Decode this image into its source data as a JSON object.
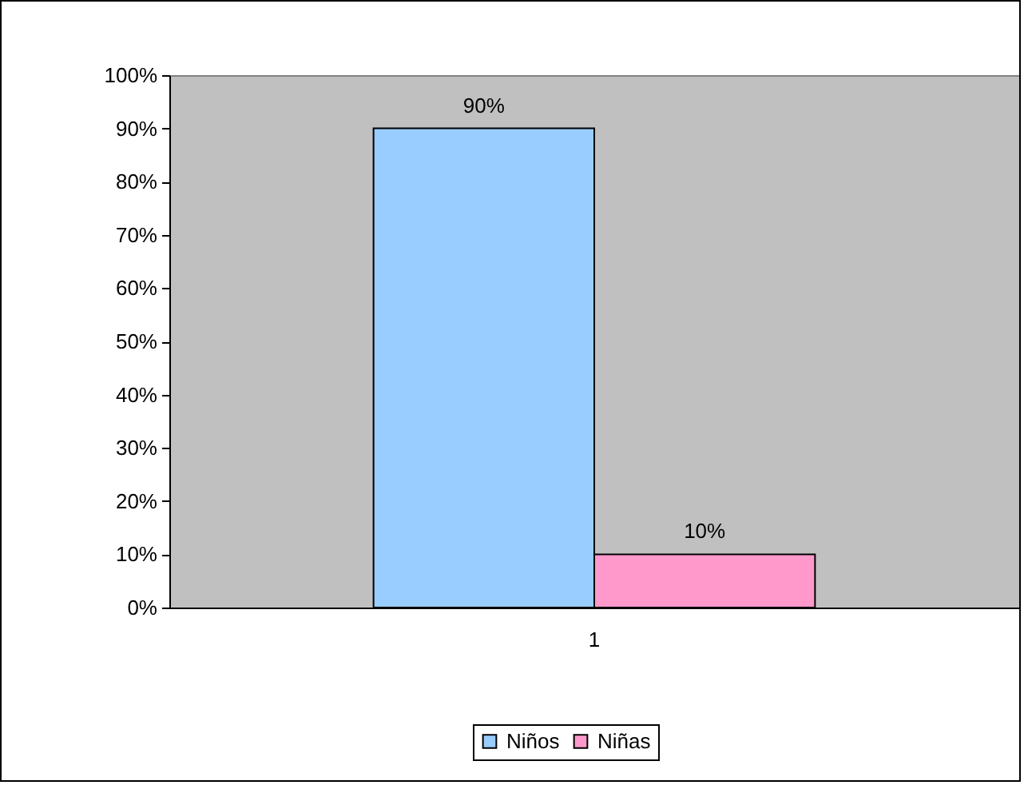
{
  "chart_data": {
    "type": "bar",
    "categories": [
      "1"
    ],
    "series": [
      {
        "name": "Niños",
        "color": "#99ccff",
        "values": [
          90
        ],
        "value_labels": [
          "90%"
        ]
      },
      {
        "name": "Niñas",
        "color": "#ff99cc",
        "values": [
          10
        ],
        "value_labels": [
          "10%"
        ]
      }
    ],
    "ylim": [
      0,
      100
    ],
    "yticks": [
      {
        "value": 0,
        "label": "0%"
      },
      {
        "value": 10,
        "label": "10%"
      },
      {
        "value": 20,
        "label": "20%"
      },
      {
        "value": 30,
        "label": "30%"
      },
      {
        "value": 40,
        "label": "40%"
      },
      {
        "value": 50,
        "label": "50%"
      },
      {
        "value": 60,
        "label": "60%"
      },
      {
        "value": 70,
        "label": "70%"
      },
      {
        "value": 80,
        "label": "80%"
      },
      {
        "value": 90,
        "label": "90%"
      },
      {
        "value": 100,
        "label": "100%"
      }
    ],
    "legend": "bottom"
  }
}
